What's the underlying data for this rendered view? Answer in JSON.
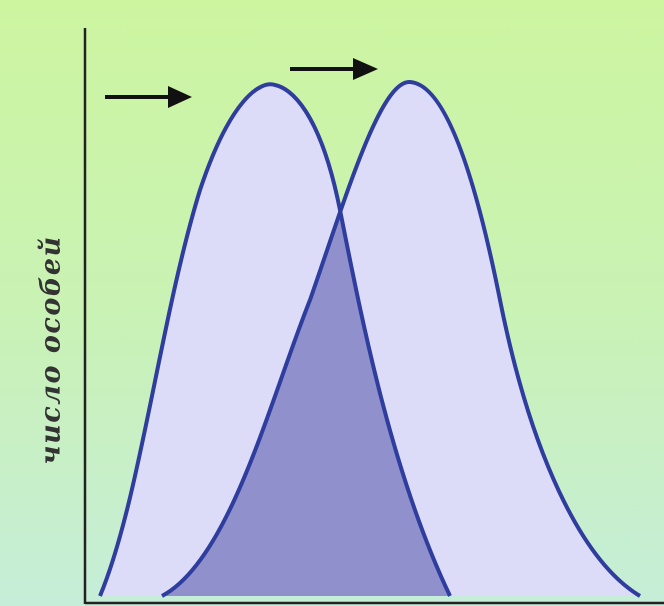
{
  "axis": {
    "y_label": "число особей"
  },
  "curves": {
    "left_peak_label": "",
    "right_peak_label": ""
  },
  "arrows": [
    {
      "direction": "right"
    },
    {
      "direction": "right"
    }
  ],
  "colors": {
    "background_top": "#cdf5a0",
    "background_bottom": "#c6edd8",
    "curve_fill": "#dcdcf8",
    "overlap_fill": "#9090cc",
    "curve_stroke": "#2e3d9e",
    "axis": "#222222",
    "arrow": "#111111"
  }
}
